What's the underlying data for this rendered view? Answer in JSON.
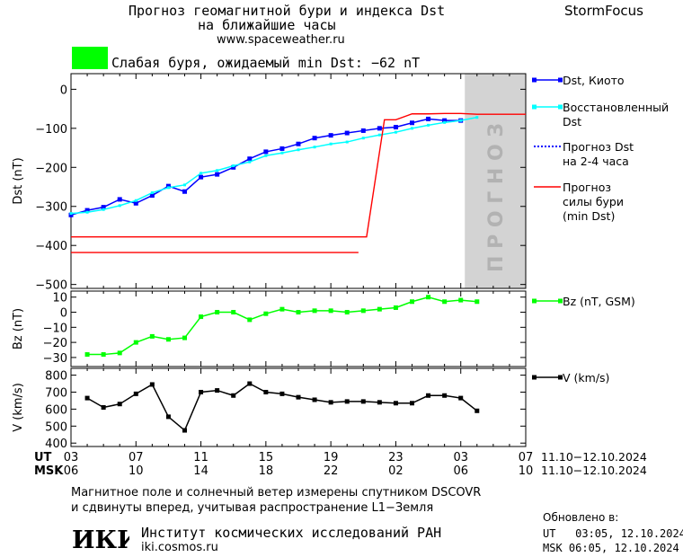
{
  "header": {
    "title_line1": "Прогноз геомагнитной бури и индекса Dst",
    "title_line2": "на ближайшие часы",
    "site": "www.spaceweather.ru",
    "brand": "StormFocus",
    "storm_label": "Слабая буря, ожидаемый min Dst: −62 nT",
    "storm_color": "#00ff00"
  },
  "forecast_band_label": "П Р О Г Н О З",
  "chart_data": [
    {
      "type": "line",
      "ylabel": "Dst (nT)",
      "ylim": [
        -510,
        40
      ],
      "yticks": [
        0,
        -100,
        -200,
        -300,
        -400,
        -500
      ],
      "ytick_labels": [
        "0",
        "−100",
        "−200",
        "−300",
        "−400",
        "−500"
      ],
      "xlim": [
        3,
        31
      ],
      "forecast_region": [
        27.25,
        31
      ],
      "series": [
        {
          "name": "Dst, Киото",
          "color": "#0000ff",
          "x": [
            3,
            4,
            5,
            6,
            7,
            8,
            9,
            10,
            11,
            12,
            13,
            14,
            15,
            16,
            17,
            18,
            19,
            20,
            21,
            22,
            23,
            24,
            25,
            26,
            27
          ],
          "y": [
            -322,
            -310,
            -302,
            -282,
            -292,
            -272,
            -248,
            -262,
            -225,
            -218,
            -200,
            -178,
            -160,
            -152,
            -140,
            -125,
            -118,
            -112,
            -106,
            -100,
            -97,
            -86,
            -76,
            -80,
            -80
          ]
        },
        {
          "name": "Восстановленный Dst",
          "color": "#00ffff",
          "x": [
            3,
            4,
            5,
            6,
            7,
            8,
            9,
            10,
            11,
            12,
            13,
            14,
            15,
            16,
            17,
            18,
            19,
            20,
            21,
            22,
            23,
            24,
            25,
            26,
            27,
            28
          ],
          "y": [
            -318,
            -315,
            -308,
            -298,
            -285,
            -265,
            -252,
            -245,
            -215,
            -208,
            -196,
            -186,
            -170,
            -163,
            -155,
            -148,
            -140,
            -135,
            -125,
            -117,
            -110,
            -100,
            -92,
            -85,
            -80,
            -72
          ]
        },
        {
          "name": "Прогноз Dst на 2-4 часа",
          "color": "#0000ff",
          "x": [],
          "y": []
        },
        {
          "name": "Прогноз силы бури (min Dst)",
          "color": "#ff0000",
          "x": [
            3,
            21.2,
            22.3,
            23,
            24,
            25,
            26,
            27,
            28,
            31
          ],
          "y": [
            -378,
            -378,
            -78,
            -78,
            -63,
            -63,
            -62,
            -62,
            -64,
            -64
          ]
        },
        {
          "name": "",
          "color": "#ff0000",
          "x": [
            3,
            20.7
          ],
          "y": [
            -418,
            -418
          ]
        }
      ]
    },
    {
      "type": "line",
      "ylabel": "Bz (nT)",
      "ylim": [
        -36,
        14
      ],
      "yticks": [
        10,
        0,
        -10,
        -20,
        -30
      ],
      "ytick_labels": [
        "10",
        "0",
        "−10",
        "−20",
        "−30"
      ],
      "xlim": [
        3,
        31
      ],
      "series": [
        {
          "name": "Bz (nT, GSM)",
          "color": "#00ff00",
          "x": [
            4,
            5,
            6,
            7,
            8,
            9,
            10,
            11,
            12,
            13,
            14,
            15,
            16,
            17,
            18,
            19,
            20,
            21,
            22,
            23,
            24,
            25,
            26,
            27,
            28
          ],
          "y": [
            -28,
            -28,
            -27,
            -20,
            -16,
            -18,
            -17,
            -3,
            0,
            0,
            -5,
            -1,
            2,
            0,
            1,
            1,
            0,
            1,
            2,
            3,
            7,
            10,
            7,
            8,
            7
          ]
        }
      ]
    },
    {
      "type": "line",
      "ylabel": "V (km/s)",
      "ylim": [
        380,
        840
      ],
      "yticks": [
        800,
        700,
        600,
        500,
        400
      ],
      "ytick_labels": [
        "800",
        "700",
        "600",
        "500",
        "400"
      ],
      "xlim": [
        3,
        31
      ],
      "series": [
        {
          "name": "V (km/s)",
          "color": "#000000",
          "x": [
            4,
            5,
            6,
            7,
            8,
            9,
            10,
            11,
            12,
            13,
            14,
            15,
            16,
            17,
            18,
            19,
            20,
            21,
            22,
            23,
            24,
            25,
            26,
            27,
            28
          ],
          "y": [
            665,
            610,
            630,
            690,
            745,
            555,
            475,
            700,
            710,
            680,
            750,
            700,
            690,
            670,
            655,
            640,
            645,
            645,
            640,
            635,
            635,
            680,
            680,
            665,
            590
          ]
        }
      ]
    }
  ],
  "x_axis": {
    "ut_label": "UT",
    "msk_label": "MSK",
    "ut_ticks": [
      "03",
      "07",
      "11",
      "15",
      "19",
      "23",
      "03",
      "07"
    ],
    "msk_ticks": [
      "06",
      "10",
      "14",
      "18",
      "22",
      "02",
      "06",
      "10"
    ],
    "range_ut": "11.10−12.10.2024",
    "range_msk": "11.10−12.10.2024"
  },
  "footer": {
    "note_line1": "Магнитное поле и солнечный ветер измерены спутником DSCOVR",
    "note_line2": "и сдвинуты вперед, учитывая распространение L1−Земля",
    "institute": "Институт космических исследований РАН",
    "institute_url": "iki.cosmos.ru",
    "logo_text": "ИКИ",
    "updated_label": "Обновлено в:",
    "updated_ut": "UT   03:05, 12.10.2024",
    "updated_msk": "MSK 06:05, 12.10.2024"
  }
}
